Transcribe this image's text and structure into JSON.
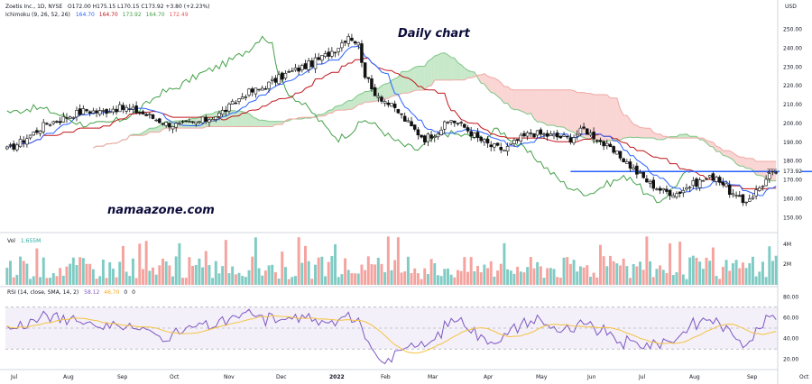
{
  "header": {
    "symbol_line": "Zoetis Inc., 1D, NYSE",
    "ohlc_line": "O172.00  H175.15  L170.15  C173.92  +3.80 (+2.23%)",
    "ichimoku_label": "Ichimoku (9, 26, 52, 26)",
    "ichimoku_values": [
      "164.70",
      "164.70",
      "173.92",
      "164.70",
      "172.49"
    ],
    "vol_label": "Vol",
    "vol_value": "1.655M",
    "rsi_label": "RSI (14, close, SMA, 14, 2)",
    "rsi_values": [
      "58.12",
      "46.70",
      "0",
      "0"
    ]
  },
  "watermarks": {
    "title": "Daily chart",
    "site": "namaazone.com"
  },
  "price_tag": "ZTS",
  "colors": {
    "up": "#26a69a",
    "down": "#ef5350",
    "candle": "#111111",
    "tenkan": "#2962ff",
    "kijun": "#c0161b",
    "chikou": "#43a047",
    "cloud_bull": "#b5e0b8",
    "cloud_bear": "#f7c7c4",
    "rsi": "#7e57c2",
    "rsi_ma": "#f5c242",
    "hline": "#2962ff"
  },
  "chart_data": {
    "type": "candlestick",
    "title": "Zoetis Inc., 1D, NYSE",
    "currency": "USD",
    "x_labels": [
      "Jul",
      "Aug",
      "Sep",
      "Oct",
      "Nov",
      "Dec",
      "2022",
      "Feb",
      "Mar",
      "Apr",
      "May",
      "Jun",
      "Jul",
      "Aug",
      "Sep",
      "Oct"
    ],
    "price_axis": {
      "ticks": [
        250.0,
        240.0,
        230.0,
        220.0,
        210.0,
        200.0,
        190.0,
        180.0,
        170.0,
        160.0,
        150.0
      ],
      "ylim": [
        143,
        256
      ],
      "current": 173.92
    },
    "volume_axis": {
      "ticks": [
        "4M",
        "2M"
      ]
    },
    "rsi_axis": {
      "ticks": [
        80.0,
        60.0,
        40.0,
        20.0
      ],
      "ylim": [
        12,
        88
      ],
      "bands": [
        30,
        50,
        70
      ]
    },
    "horizontal_line": {
      "price": 174.5,
      "label": "ZTS 173.92"
    },
    "price_anchors": [
      [
        0,
        186
      ],
      [
        4,
        190
      ],
      [
        8,
        195
      ],
      [
        12,
        200
      ],
      [
        16,
        202
      ],
      [
        20,
        205
      ],
      [
        24,
        207
      ],
      [
        28,
        206
      ],
      [
        32,
        208
      ],
      [
        36,
        208
      ],
      [
        40,
        206
      ],
      [
        44,
        203
      ],
      [
        48,
        200
      ],
      [
        52,
        199
      ],
      [
        56,
        200
      ],
      [
        60,
        202
      ],
      [
        64,
        205
      ],
      [
        68,
        210
      ],
      [
        72,
        216
      ],
      [
        76,
        218
      ],
      [
        80,
        222
      ],
      [
        84,
        226
      ],
      [
        88,
        229
      ],
      [
        92,
        232
      ],
      [
        96,
        236
      ],
      [
        100,
        241
      ],
      [
        103,
        247
      ],
      [
        106,
        242
      ],
      [
        108,
        226
      ],
      [
        110,
        218
      ],
      [
        114,
        212
      ],
      [
        118,
        206
      ],
      [
        122,
        198
      ],
      [
        126,
        192
      ],
      [
        130,
        196
      ],
      [
        134,
        202
      ],
      [
        138,
        198
      ],
      [
        142,
        192
      ],
      [
        146,
        188
      ],
      [
        150,
        186
      ],
      [
        154,
        191
      ],
      [
        158,
        195
      ],
      [
        162,
        194
      ],
      [
        166,
        193
      ],
      [
        170,
        192
      ],
      [
        174,
        197
      ],
      [
        178,
        192
      ],
      [
        182,
        186
      ],
      [
        186,
        181
      ],
      [
        190,
        174
      ],
      [
        194,
        168
      ],
      [
        198,
        164
      ],
      [
        202,
        163
      ],
      [
        206,
        167
      ],
      [
        210,
        170
      ],
      [
        214,
        172
      ],
      [
        216,
        168
      ],
      [
        219,
        162
      ],
      [
        222,
        158
      ],
      [
        225,
        162
      ],
      [
        228,
        168
      ],
      [
        230,
        172
      ],
      [
        232,
        174
      ]
    ],
    "volume_range_millions": [
      0.5,
      4.4
    ],
    "rsi_range": [
      16,
      82
    ],
    "last_rsi": 58.12
  }
}
